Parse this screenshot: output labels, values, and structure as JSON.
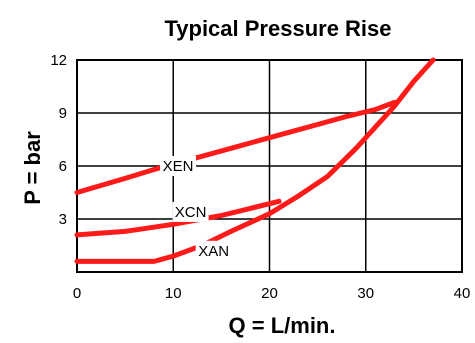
{
  "chart_data": {
    "type": "line",
    "title": "Typical Pressure Rise",
    "xlabel": "Q = L/min.",
    "ylabel": "P = bar",
    "xlim": [
      0,
      40
    ],
    "ylim": [
      0,
      12
    ],
    "x_ticks": [
      "0",
      "10",
      "20",
      "30",
      "40"
    ],
    "y_ticks": [
      "3",
      "6",
      "9",
      "12"
    ],
    "grid": true,
    "line_color": "#ff1a1a",
    "series": [
      {
        "name": "XEN",
        "x": [
          0,
          5,
          8,
          12,
          16,
          20,
          24,
          28,
          31,
          33
        ],
        "y": [
          4.5,
          5.3,
          5.8,
          6.4,
          7.0,
          7.6,
          8.2,
          8.8,
          9.2,
          9.6
        ]
      },
      {
        "name": "XCN",
        "x": [
          0,
          5,
          10,
          15,
          18,
          21
        ],
        "y": [
          2.1,
          2.3,
          2.7,
          3.2,
          3.6,
          4.0
        ]
      },
      {
        "name": "XAN",
        "x": [
          0,
          8,
          10,
          13,
          16,
          20,
          23,
          26,
          29,
          31,
          33,
          35,
          37
        ],
        "y": [
          0.6,
          0.6,
          0.9,
          1.5,
          2.3,
          3.3,
          4.3,
          5.4,
          7.0,
          8.2,
          9.4,
          10.8,
          12.0
        ]
      }
    ]
  }
}
